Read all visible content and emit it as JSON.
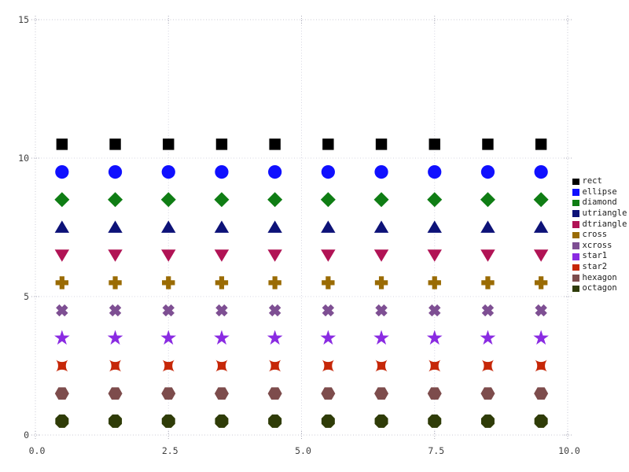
{
  "style": {
    "background": "#ffffff",
    "grid_color": "#d6d6e2",
    "border_color": "#c9c9d4",
    "tick_mark_color": "#ababb8",
    "tick_label_color": "#3f3f3f",
    "legend_text_color": "#222222"
  },
  "chart_data": {
    "type": "scatter",
    "title": "",
    "xlabel": "",
    "ylabel": "",
    "xlim": [
      0,
      10
    ],
    "ylim": [
      0,
      15
    ],
    "grid": true,
    "legend_position": "outside-right",
    "x_ticks": {
      "values": [
        0,
        2.5,
        5,
        7.5,
        10
      ],
      "labels": [
        "0.0",
        "2.5",
        "5.0",
        "7.5",
        "10.0"
      ]
    },
    "y_ticks": {
      "values": [
        0,
        5,
        10,
        15
      ],
      "labels": [
        "0",
        "5",
        "10",
        "15"
      ]
    },
    "x": [
      0.5,
      1.5,
      2.5,
      3.5,
      4.5,
      5.5,
      6.5,
      7.5,
      8.5,
      9.5
    ],
    "series": [
      {
        "name": "rect",
        "marker": "rect",
        "color": "#000000",
        "values": [
          10.5,
          10.5,
          10.5,
          10.5,
          10.5,
          10.5,
          10.5,
          10.5,
          10.5,
          10.5
        ]
      },
      {
        "name": "ellipse",
        "marker": "ellipse",
        "color": "#1010ff",
        "values": [
          9.5,
          9.5,
          9.5,
          9.5,
          9.5,
          9.5,
          9.5,
          9.5,
          9.5,
          9.5
        ]
      },
      {
        "name": "diamond",
        "marker": "diamond",
        "color": "#0f7d14",
        "values": [
          8.5,
          8.5,
          8.5,
          8.5,
          8.5,
          8.5,
          8.5,
          8.5,
          8.5,
          8.5
        ]
      },
      {
        "name": "utriangle",
        "marker": "utriangle",
        "color": "#0d1278",
        "values": [
          7.5,
          7.5,
          7.5,
          7.5,
          7.5,
          7.5,
          7.5,
          7.5,
          7.5,
          7.5
        ]
      },
      {
        "name": "dtriangle",
        "marker": "dtriangle",
        "color": "#b11355",
        "values": [
          6.5,
          6.5,
          6.5,
          6.5,
          6.5,
          6.5,
          6.5,
          6.5,
          6.5,
          6.5
        ]
      },
      {
        "name": "cross",
        "marker": "cross",
        "color": "#9a6b04",
        "values": [
          5.5,
          5.5,
          5.5,
          5.5,
          5.5,
          5.5,
          5.5,
          5.5,
          5.5,
          5.5
        ]
      },
      {
        "name": "xcross",
        "marker": "xcross",
        "color": "#7e4f93",
        "values": [
          4.5,
          4.5,
          4.5,
          4.5,
          4.5,
          4.5,
          4.5,
          4.5,
          4.5,
          4.5
        ]
      },
      {
        "name": "star1",
        "marker": "star1",
        "color": "#8a2be2",
        "values": [
          3.5,
          3.5,
          3.5,
          3.5,
          3.5,
          3.5,
          3.5,
          3.5,
          3.5,
          3.5
        ]
      },
      {
        "name": "star2",
        "marker": "star2",
        "color": "#c62708",
        "values": [
          2.5,
          2.5,
          2.5,
          2.5,
          2.5,
          2.5,
          2.5,
          2.5,
          2.5,
          2.5
        ]
      },
      {
        "name": "hexagon",
        "marker": "hexagon",
        "color": "#7d4c4c",
        "values": [
          1.5,
          1.5,
          1.5,
          1.5,
          1.5,
          1.5,
          1.5,
          1.5,
          1.5,
          1.5
        ]
      },
      {
        "name": "octagon",
        "marker": "octagon",
        "color": "#2f3c08",
        "values": [
          0.5,
          0.5,
          0.5,
          0.5,
          0.5,
          0.5,
          0.5,
          0.5,
          0.5,
          0.5
        ]
      }
    ]
  }
}
